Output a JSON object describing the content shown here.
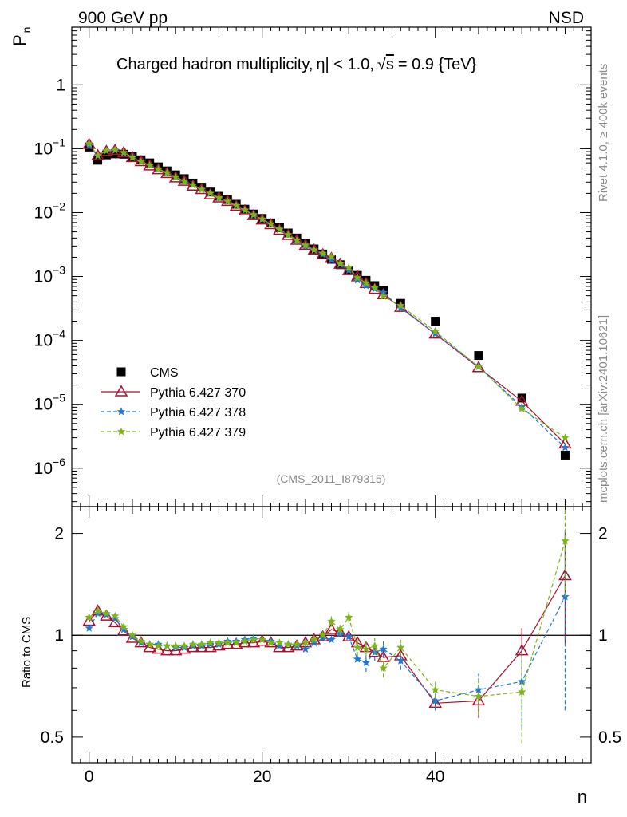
{
  "header": {
    "left": "900 GeV pp",
    "right": "NSD"
  },
  "side_labels": {
    "rivet": "Rivet 4.1.0, ≥ 400k events",
    "mcplots": "mcplots.cern.ch [arXiv:2401.10621]"
  },
  "chart_data": [
    {
      "type": "scatter",
      "title": "Charged hadron multiplicity, |η| < 1.0, √s = 0.9 {TeV}",
      "title_parts": {
        "pre": "Charged hadron multiplicity,",
        "eta": "η",
        "mid": "| < 1.0,",
        "sqrt": "√",
        "s": "s",
        "post": "= 0.9 {TeV}"
      },
      "ylabel": "P",
      "ylabel_sub": "n",
      "yscale": "log",
      "xlim": [
        -2,
        58
      ],
      "ylim": [
        2.5e-07,
        8
      ],
      "xticks": [
        0,
        20,
        40
      ],
      "yticks": [
        {
          "value": 1,
          "base": "1",
          "exp": ""
        },
        {
          "value": 0.1,
          "base": "10",
          "exp": "−1"
        },
        {
          "value": 0.01,
          "base": "10",
          "exp": "−2"
        },
        {
          "value": 0.001,
          "base": "10",
          "exp": "−3"
        },
        {
          "value": 0.0001,
          "base": "10",
          "exp": "−4"
        },
        {
          "value": 1e-05,
          "base": "10",
          "exp": "−5"
        },
        {
          "value": 1e-06,
          "base": "10",
          "exp": "−6"
        }
      ],
      "watermark": "(CMS_2011_I879315)",
      "legend_position": "bottom-left",
      "x": [
        0,
        1,
        2,
        3,
        4,
        5,
        6,
        7,
        8,
        9,
        10,
        11,
        12,
        13,
        14,
        15,
        16,
        17,
        18,
        19,
        20,
        21,
        22,
        23,
        24,
        25,
        26,
        27,
        28,
        29,
        30,
        31,
        32,
        33,
        34,
        36,
        40,
        45,
        50,
        55
      ],
      "series": [
        {
          "name": "CMS",
          "color": "#000000",
          "marker": "square",
          "values": [
            0.106,
            0.066,
            0.08,
            0.083,
            0.082,
            0.075,
            0.067,
            0.06,
            0.052,
            0.045,
            0.039,
            0.034,
            0.029,
            0.025,
            0.021,
            0.018,
            0.016,
            0.0135,
            0.0113,
            0.0095,
            0.0081,
            0.0069,
            0.0058,
            0.0048,
            0.004,
            0.0033,
            0.0027,
            0.00225,
            0.00186,
            0.00153,
            0.00126,
            0.00104,
            0.00087,
            0.00072,
            0.00061,
            0.00038,
            0.0002,
            5.8e-05,
            1.25e-05,
            1.6e-06
          ]
        },
        {
          "name": "Pythia 6.427 370",
          "color": "#a8102e",
          "marker": "triangle",
          "line": "solid",
          "values": [
            0.117,
            0.078,
            0.091,
            0.094,
            0.087,
            0.073,
            0.063,
            0.054,
            0.047,
            0.041,
            0.035,
            0.031,
            0.026,
            0.023,
            0.019,
            0.017,
            0.015,
            0.0126,
            0.0107,
            0.009,
            0.0077,
            0.0065,
            0.0053,
            0.0044,
            0.0037,
            0.0031,
            0.0026,
            0.0022,
            0.00193,
            0.00156,
            0.00124,
            0.00099,
            0.00078,
            0.00063,
            0.00052,
            0.00033,
            0.000126,
            3.75e-05,
            1.12e-05,
            2.4e-06
          ]
        },
        {
          "name": "Pythia 6.427 378",
          "color": "#1f78d4",
          "marker": "star",
          "line": "dashed",
          "values": [
            0.111,
            0.077,
            0.092,
            0.094,
            0.086,
            0.074,
            0.063,
            0.055,
            0.048,
            0.042,
            0.036,
            0.031,
            0.027,
            0.023,
            0.02,
            0.017,
            0.015,
            0.0129,
            0.011,
            0.0093,
            0.0079,
            0.0066,
            0.0054,
            0.0045,
            0.0037,
            0.003,
            0.0026,
            0.0022,
            0.0018,
            0.00155,
            0.00125,
            0.00088,
            0.00072,
            0.00064,
            0.00056,
            0.00032,
            0.000127,
            3.9e-05,
            9.1e-06,
            2.1e-06
          ]
        },
        {
          "name": "Pythia 6.427 379",
          "color": "#7cb518",
          "marker": "star",
          "line": "dashed",
          "values": [
            0.12,
            0.078,
            0.093,
            0.095,
            0.087,
            0.073,
            0.063,
            0.055,
            0.048,
            0.042,
            0.036,
            0.031,
            0.027,
            0.023,
            0.02,
            0.017,
            0.015,
            0.0128,
            0.0109,
            0.0092,
            0.0079,
            0.0066,
            0.0055,
            0.0045,
            0.0037,
            0.0031,
            0.0026,
            0.0023,
            0.00205,
            0.00158,
            0.00137,
            0.00096,
            0.00079,
            0.00067,
            0.00049,
            0.00035,
            0.000138,
            3.85e-05,
            8.5e-06,
            3e-06
          ]
        }
      ]
    },
    {
      "type": "line",
      "ylabel": "Ratio to CMS",
      "xlabel": "n",
      "yscale": "log",
      "xlim": [
        -2,
        58
      ],
      "ylim": [
        0.42,
        2.4
      ],
      "xticks": [
        0,
        20,
        40
      ],
      "yticks": [
        0.5,
        1,
        2
      ],
      "ytick_labels": [
        "0.5",
        "1",
        "2"
      ],
      "reference_line": 1,
      "x": [
        0,
        1,
        2,
        3,
        4,
        5,
        6,
        7,
        8,
        9,
        10,
        11,
        12,
        13,
        14,
        15,
        16,
        17,
        18,
        19,
        20,
        21,
        22,
        23,
        24,
        25,
        26,
        27,
        28,
        29,
        30,
        31,
        32,
        33,
        34,
        36,
        40,
        45,
        50,
        55
      ],
      "series": [
        {
          "name": "Pythia 6.427 370",
          "color": "#a8102e",
          "marker": "triangle",
          "line": "solid",
          "values": [
            1.1,
            1.18,
            1.14,
            1.09,
            1.03,
            0.98,
            0.95,
            0.92,
            0.91,
            0.9,
            0.9,
            0.91,
            0.92,
            0.92,
            0.92,
            0.93,
            0.94,
            0.94,
            0.95,
            0.95,
            0.96,
            0.95,
            0.92,
            0.92,
            0.93,
            0.95,
            0.97,
            0.99,
            1.04,
            1.02,
            0.99,
            0.95,
            0.92,
            0.89,
            0.86,
            0.87,
            0.63,
            0.64,
            0.9,
            1.5
          ],
          "errors": [
            0,
            0,
            0,
            0,
            0,
            0,
            0,
            0,
            0,
            0,
            0,
            0,
            0,
            0,
            0,
            0,
            0,
            0,
            0,
            0,
            0,
            0,
            0,
            0,
            0,
            0,
            0,
            0,
            0,
            0,
            0,
            0,
            0,
            0,
            0,
            0,
            0.03,
            0.07,
            0.15,
            0.55
          ]
        },
        {
          "name": "Pythia 6.427 378",
          "color": "#1f78d4",
          "marker": "star",
          "line": "dashed",
          "values": [
            1.05,
            1.16,
            1.15,
            1.12,
            1.04,
            0.99,
            0.95,
            0.94,
            0.94,
            0.93,
            0.92,
            0.92,
            0.93,
            0.93,
            0.94,
            0.94,
            0.96,
            0.96,
            0.97,
            0.98,
            0.97,
            0.96,
            0.93,
            0.94,
            0.93,
            0.91,
            0.95,
            0.98,
            0.97,
            1.01,
            0.99,
            0.85,
            0.83,
            0.89,
            0.91,
            0.84,
            0.64,
            0.69,
            0.73,
            1.3
          ],
          "errors": [
            0,
            0,
            0,
            0,
            0,
            0,
            0,
            0,
            0,
            0,
            0,
            0,
            0,
            0,
            0,
            0,
            0,
            0,
            0,
            0,
            0,
            0,
            0,
            0,
            0,
            0,
            0,
            0,
            0,
            0,
            0,
            0,
            0.05,
            0.05,
            0.05,
            0.05,
            0.04,
            0.08,
            0.2,
            0.7
          ]
        },
        {
          "name": "Pythia 6.427 379",
          "color": "#7cb518",
          "marker": "star",
          "line": "dashed",
          "values": [
            1.13,
            1.18,
            1.16,
            1.14,
            1.06,
            1.0,
            0.96,
            0.94,
            0.93,
            0.93,
            0.93,
            0.93,
            0.94,
            0.94,
            0.95,
            0.95,
            0.95,
            0.95,
            0.96,
            0.97,
            0.97,
            0.95,
            0.95,
            0.94,
            0.94,
            0.95,
            0.97,
            1.0,
            1.1,
            1.04,
            1.13,
            0.92,
            0.91,
            0.93,
            0.8,
            0.92,
            0.69,
            0.66,
            0.68,
            1.9
          ],
          "errors": [
            0,
            0,
            0,
            0,
            0,
            0,
            0,
            0,
            0,
            0,
            0,
            0,
            0,
            0,
            0,
            0,
            0,
            0,
            0,
            0,
            0,
            0,
            0,
            0,
            0,
            0,
            0,
            0,
            0.04,
            0.04,
            0.04,
            0.05,
            0.05,
            0.05,
            0.05,
            0.05,
            0.04,
            0.08,
            0.2,
            0.6
          ]
        }
      ]
    }
  ]
}
